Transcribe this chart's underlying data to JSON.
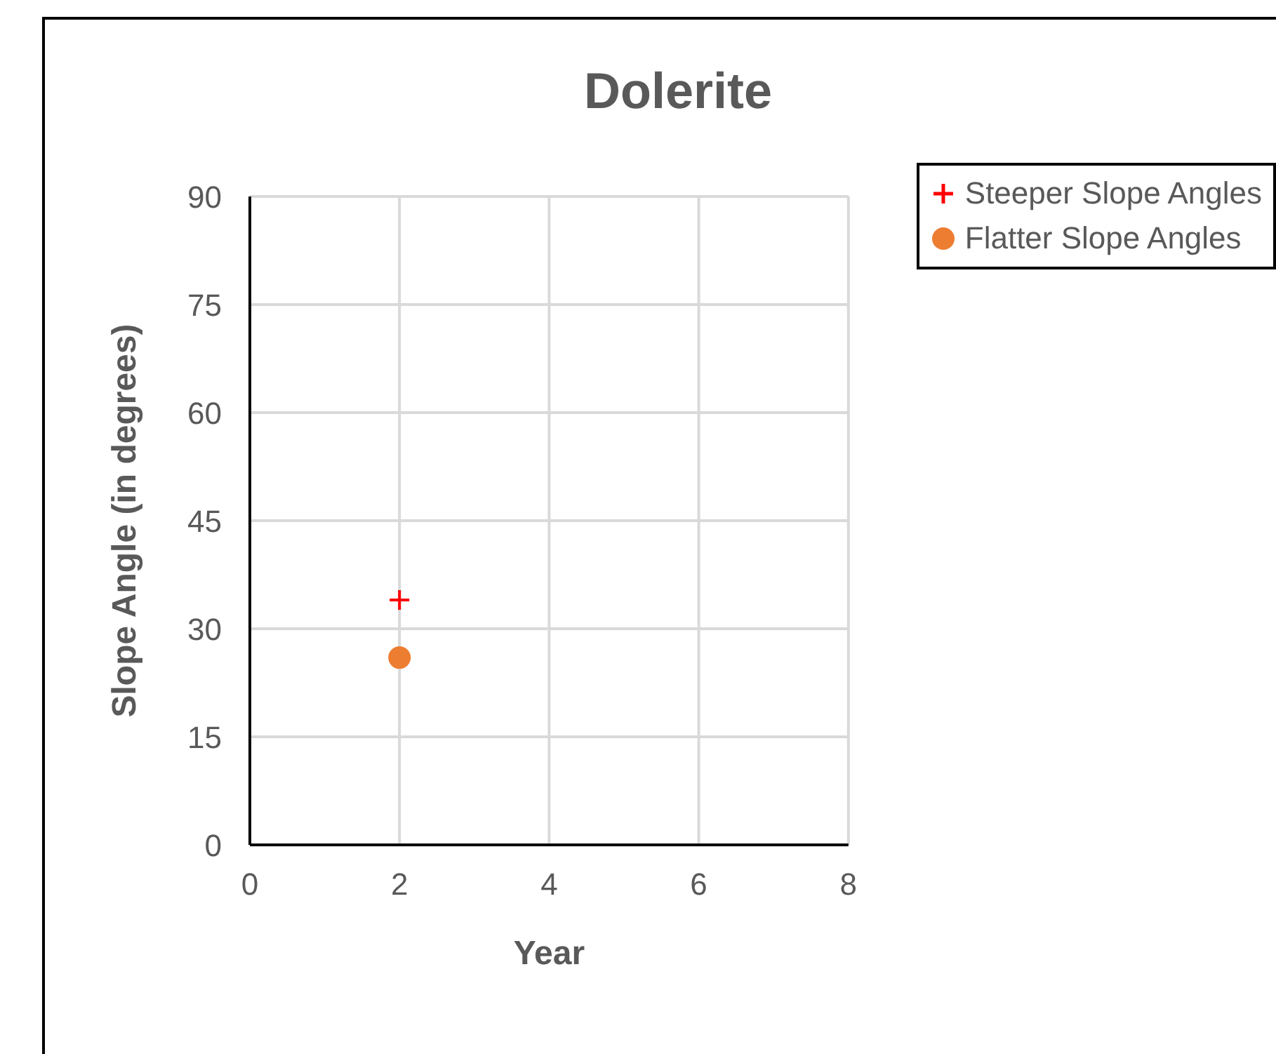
{
  "chart_data": {
    "type": "scatter",
    "title": "Dolerite",
    "xlabel": "Year",
    "ylabel": "Slope Angle (in degrees)",
    "xlim": [
      0,
      8
    ],
    "xticks": [
      0,
      2,
      4,
      6,
      8
    ],
    "ylim": [
      0,
      90
    ],
    "yticks": [
      0,
      15,
      30,
      45,
      60,
      75,
      90
    ],
    "grid": true,
    "legend": "top right",
    "series": [
      {
        "name": "Steeper Slope Angles",
        "color": "#ff0000",
        "marker": "cross",
        "x": [
          2
        ],
        "values": [
          34
        ]
      },
      {
        "name": "Flatter Slope Angles",
        "color": "#ed7d31",
        "marker": "circle",
        "x": [
          2
        ],
        "values": [
          26
        ]
      }
    ]
  }
}
